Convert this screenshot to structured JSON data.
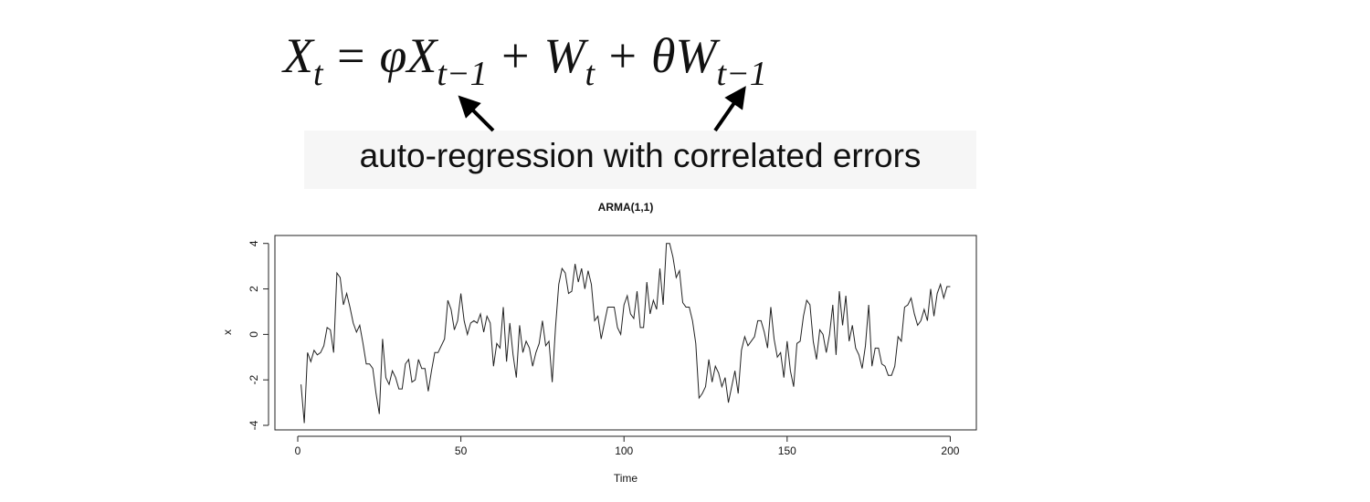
{
  "equation": [
    {
      "text": "X",
      "sub": "t"
    },
    {
      "text": "= φX",
      "sub": "t−1"
    },
    {
      "text": "+ W",
      "sub": "t"
    },
    {
      "text": "+ θW",
      "sub": "t−1"
    }
  ],
  "annotation": "auto-regression with correlated errors",
  "chart_data": {
    "type": "line",
    "title": "ARMA(1,1)",
    "x_label": "Time",
    "y_label": "x",
    "color": "#222222",
    "x": [
      1,
      2,
      3,
      4,
      5,
      6,
      7,
      8,
      9,
      10,
      11,
      12,
      13,
      14,
      15,
      16,
      17,
      18,
      19,
      20,
      21,
      22,
      23,
      24,
      25,
      26,
      27,
      28,
      29,
      30,
      31,
      32,
      33,
      34,
      35,
      36,
      37,
      38,
      39,
      40,
      41,
      42,
      43,
      44,
      45,
      46,
      47,
      48,
      49,
      50,
      51,
      52,
      53,
      54,
      55,
      56,
      57,
      58,
      59,
      60,
      61,
      62,
      63,
      64,
      65,
      66,
      67,
      68,
      69,
      70,
      71,
      72,
      73,
      74,
      75,
      76,
      77,
      78,
      79,
      80,
      81,
      82,
      83,
      84,
      85,
      86,
      87,
      88,
      89,
      90,
      91,
      92,
      93,
      94,
      95,
      96,
      97,
      98,
      99,
      100,
      101,
      102,
      103,
      104,
      105,
      106,
      107,
      108,
      109,
      110,
      111,
      112,
      113,
      114,
      115,
      116,
      117,
      118,
      119,
      120,
      121,
      122,
      123,
      124,
      125,
      126,
      127,
      128,
      129,
      130,
      131,
      132,
      133,
      134,
      135,
      136,
      137,
      138,
      139,
      140,
      141,
      142,
      143,
      144,
      145,
      146,
      147,
      148,
      149,
      150,
      151,
      152,
      153,
      154,
      155,
      156,
      157,
      158,
      159,
      160,
      161,
      162,
      163,
      164,
      165,
      166,
      167,
      168,
      169,
      170,
      171,
      172,
      173,
      174,
      175,
      176,
      177,
      178,
      179,
      180,
      181,
      182,
      183,
      184,
      185,
      186,
      187,
      188,
      189,
      190,
      191,
      192,
      193,
      194,
      195,
      196,
      197,
      198,
      199,
      200
    ],
    "values": [
      -2.2,
      -3.9,
      -0.8,
      -1.2,
      -0.7,
      -0.9,
      -0.8,
      -0.5,
      0.3,
      0.2,
      -0.8,
      2.7,
      2.5,
      1.3,
      1.8,
      1.2,
      0.5,
      0.1,
      0.4,
      -0.4,
      -1.3,
      -1.3,
      -1.5,
      -2.6,
      -3.5,
      -0.2,
      -1.9,
      -2.2,
      -1.6,
      -1.9,
      -2.4,
      -2.4,
      -1.3,
      -1.1,
      -2.1,
      -2.0,
      -1.1,
      -1.5,
      -1.5,
      -2.5,
      -1.6,
      -0.8,
      -0.8,
      -0.5,
      -0.2,
      1.5,
      1.1,
      0.2,
      0.6,
      1.8,
      0.6,
      0.0,
      0.5,
      0.6,
      0.5,
      0.9,
      0.1,
      0.8,
      0.5,
      -1.4,
      -0.4,
      -0.6,
      1.2,
      -1.2,
      0.5,
      -0.9,
      -1.9,
      0.4,
      -0.8,
      -0.3,
      -0.6,
      -1.4,
      -0.8,
      -0.4,
      0.6,
      -0.5,
      -0.3,
      -2.1,
      0.3,
      2.2,
      2.9,
      2.7,
      1.8,
      1.9,
      3.1,
      2.3,
      2.9,
      2.0,
      2.8,
      2.2,
      0.6,
      0.8,
      -0.2,
      0.5,
      1.2,
      1.2,
      1.2,
      0.3,
      0.0,
      1.3,
      1.7,
      0.9,
      0.7,
      1.9,
      0.3,
      0.3,
      2.3,
      0.9,
      1.5,
      1.1,
      2.9,
      1.3,
      4.0,
      4.0,
      3.4,
      2.5,
      2.8,
      1.4,
      1.2,
      1.2,
      0.6,
      -0.4,
      -2.8,
      -2.6,
      -2.3,
      -1.1,
      -2.1,
      -1.4,
      -1.7,
      -2.3,
      -1.9,
      -3.0,
      -2.3,
      -1.6,
      -2.6,
      -0.7,
      -0.1,
      -0.5,
      -0.3,
      -0.1,
      0.6,
      0.6,
      0.1,
      -0.6,
      1.2,
      -0.2,
      -1.0,
      -0.8,
      -1.9,
      -0.3,
      -1.6,
      -2.3,
      -0.4,
      -0.3,
      0.8,
      1.5,
      1.3,
      -0.3,
      -1.1,
      0.2,
      0.0,
      -0.8,
      0.0,
      1.3,
      -0.9,
      1.9,
      0.4,
      1.7,
      -0.3,
      0.4,
      -0.6,
      -0.9,
      -1.5,
      -0.5,
      1.3,
      -1.4,
      -0.6,
      -0.6,
      -1.3,
      -1.4,
      -1.8,
      -1.8,
      -1.4,
      -0.1,
      -0.3,
      1.2,
      1.3,
      1.6,
      0.9,
      0.4,
      0.6,
      1.1,
      0.6,
      2.0,
      0.8,
      1.8,
      2.2,
      1.6,
      2.1,
      2.1
    ],
    "xlim": [
      -7,
      208
    ],
    "xticks": [
      0,
      50,
      100,
      150,
      200
    ],
    "ylim": [
      -4.2,
      4.35
    ],
    "yticks": [
      -4,
      -2,
      0,
      2,
      4
    ]
  }
}
